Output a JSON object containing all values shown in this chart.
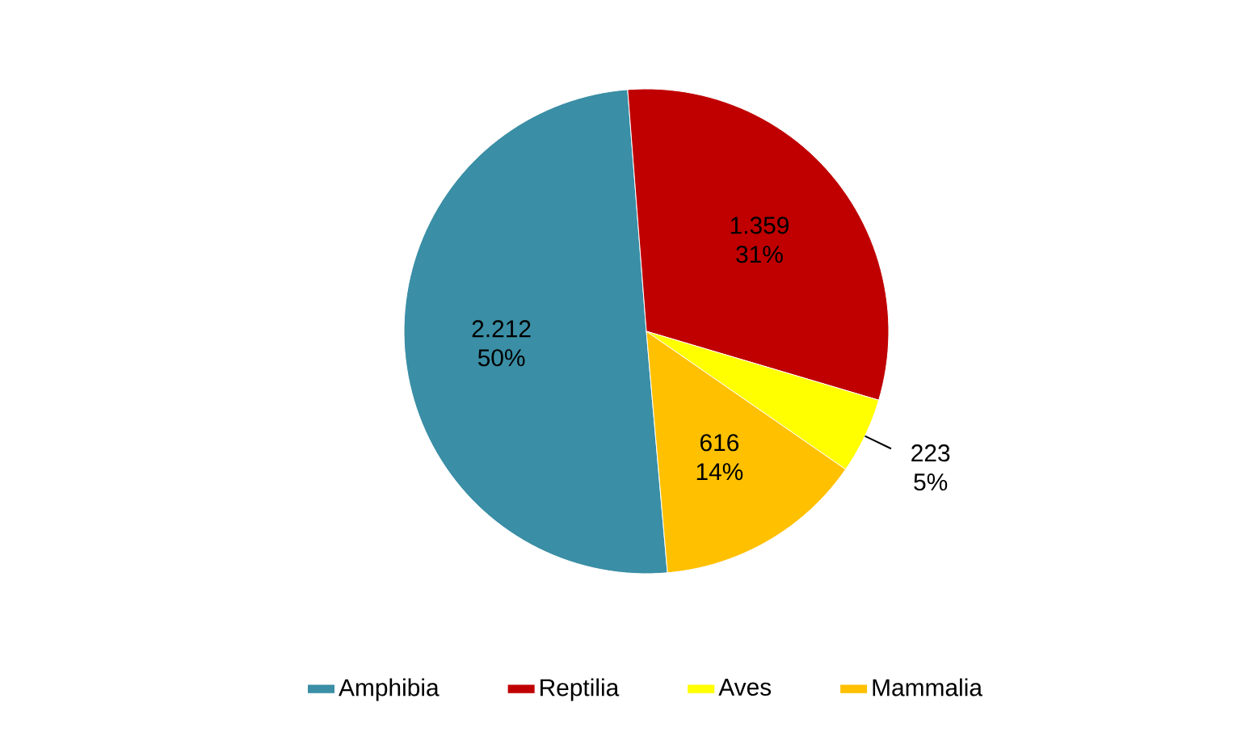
{
  "chart_data": {
    "type": "pie",
    "categories": [
      "Amphibia",
      "Reptilia",
      "Aves",
      "Mammalia"
    ],
    "values": [
      2212,
      1359,
      223,
      616
    ],
    "value_labels": [
      "2.212",
      "1.359",
      "223",
      "616"
    ],
    "annotations": [
      "50%",
      "31%",
      "5%",
      "14%"
    ],
    "colors": [
      "#3a8ea5",
      "#c00000",
      "#ffff00",
      "#ffc000"
    ],
    "legend": "bottom"
  }
}
